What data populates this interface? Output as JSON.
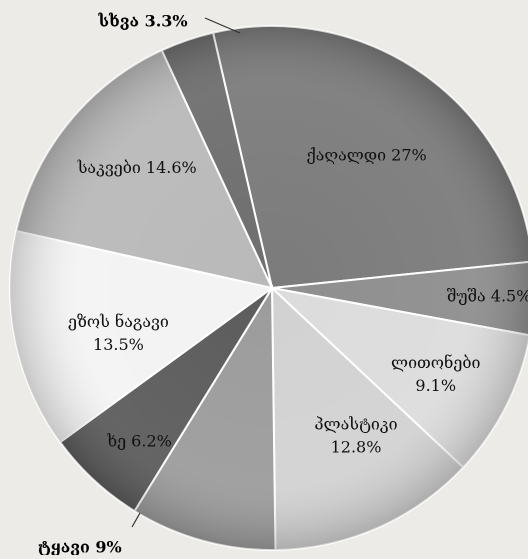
{
  "chart_data": {
    "type": "pie",
    "start_angle_deg": -13,
    "direction": "clockwise",
    "slices": [
      {
        "label": "ქაღალდი",
        "value": 27,
        "value_text": "27%",
        "color": "#7b7b7b",
        "label_style": "inside"
      },
      {
        "label": "შუშა",
        "value": 4.5,
        "value_text": "4.5%",
        "color": "#8e8e8e",
        "label_style": "inside"
      },
      {
        "label": "ლითონები",
        "value": 9.1,
        "value_text": "9.1%",
        "color": "#dcdcdc",
        "label_style": "inside"
      },
      {
        "label": "პლასტიკი",
        "value": 12.8,
        "value_text": "12.8%",
        "color": "#d2d2d2",
        "label_style": "inside"
      },
      {
        "label": "ტყავი",
        "value": 9,
        "value_text": "9%",
        "color": "#9c9c9c",
        "label_style": "outside"
      },
      {
        "label": "ხე",
        "value": 6.2,
        "value_text": "6.2%",
        "color": "#5c5c5c",
        "label_style": "inside"
      },
      {
        "label": "ეზოს ნაგავი",
        "value": 13.5,
        "value_text": "13.5%",
        "color": "#f3f3f3",
        "label_style": "inside"
      },
      {
        "label": "საკვები",
        "value": 14.6,
        "value_text": "14.6%",
        "color": "#b9b9b9",
        "label_style": "inside"
      },
      {
        "label": "სხვა",
        "value": 3.3,
        "value_text": "3.3%",
        "color": "#6e6e6e",
        "label_style": "outside"
      }
    ]
  }
}
